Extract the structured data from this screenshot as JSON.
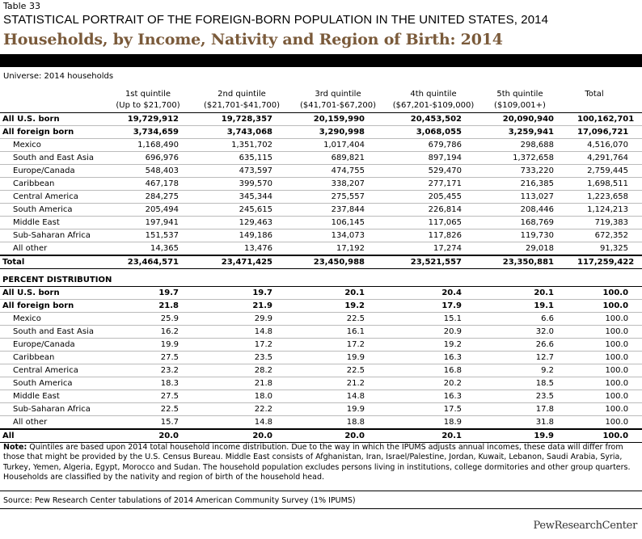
{
  "table_label": "Table 33",
  "super_title": "STATISTICAL PORTRAIT OF THE FOREIGN-BORN POPULATION IN THE UNITED STATES, 2014",
  "main_title": "Households, by Income, Nativity and Region of Birth: 2014",
  "universe": "Universe: 2014 households",
  "columns": [
    {
      "name": "1st quintile",
      "range": "(Up to $21,700)"
    },
    {
      "name": "2nd quintile",
      "range": "($21,701-$41,700)"
    },
    {
      "name": "3rd quintile",
      "range": "($41,701-$67,200)"
    },
    {
      "name": "4th quintile",
      "range": "($67,201-$109,000)"
    },
    {
      "name": "5th quintile",
      "range": "($109,001+)"
    },
    {
      "name": "",
      "range": "Total"
    }
  ],
  "counts": [
    {
      "label": "All U.S. born",
      "values": [
        "19,729,912",
        "19,728,357",
        "20,159,990",
        "20,453,502",
        "20,090,940",
        "100,162,701"
      ]
    },
    {
      "label": "All foreign born",
      "values": [
        "3,734,659",
        "3,743,068",
        "3,290,998",
        "3,068,055",
        "3,259,941",
        "17,096,721"
      ]
    },
    {
      "label": "Mexico",
      "values": [
        "1,168,490",
        "1,351,702",
        "1,017,404",
        "679,786",
        "298,688",
        "4,516,070"
      ]
    },
    {
      "label": "South and East Asia",
      "values": [
        "696,976",
        "635,115",
        "689,821",
        "897,194",
        "1,372,658",
        "4,291,764"
      ]
    },
    {
      "label": "Europe/Canada",
      "values": [
        "548,403",
        "473,597",
        "474,755",
        "529,470",
        "733,220",
        "2,759,445"
      ]
    },
    {
      "label": "Caribbean",
      "values": [
        "467,178",
        "399,570",
        "338,207",
        "277,171",
        "216,385",
        "1,698,511"
      ]
    },
    {
      "label": "Central America",
      "values": [
        "284,275",
        "345,344",
        "275,557",
        "205,455",
        "113,027",
        "1,223,658"
      ]
    },
    {
      "label": "South America",
      "values": [
        "205,494",
        "245,615",
        "237,844",
        "226,814",
        "208,446",
        "1,124,213"
      ]
    },
    {
      "label": "Middle East",
      "values": [
        "197,941",
        "129,463",
        "106,145",
        "117,065",
        "168,769",
        "719,383"
      ]
    },
    {
      "label": "Sub-Saharan Africa",
      "values": [
        "151,537",
        "149,186",
        "134,073",
        "117,826",
        "119,730",
        "672,352"
      ]
    },
    {
      "label": "All other",
      "values": [
        "14,365",
        "13,476",
        "17,192",
        "17,274",
        "29,018",
        "91,325"
      ]
    },
    {
      "label": "Total",
      "values": [
        "23,464,571",
        "23,471,425",
        "23,450,988",
        "23,521,557",
        "23,350,881",
        "117,259,422"
      ]
    }
  ],
  "pct_heading": "PERCENT DISTRIBUTION",
  "percents": [
    {
      "label": "All U.S. born",
      "values": [
        "19.7",
        "19.7",
        "20.1",
        "20.4",
        "20.1",
        "100.0"
      ]
    },
    {
      "label": "All foreign born",
      "values": [
        "21.8",
        "21.9",
        "19.2",
        "17.9",
        "19.1",
        "100.0"
      ]
    },
    {
      "label": "Mexico",
      "values": [
        "25.9",
        "29.9",
        "22.5",
        "15.1",
        "6.6",
        "100.0"
      ]
    },
    {
      "label": "South and East Asia",
      "values": [
        "16.2",
        "14.8",
        "16.1",
        "20.9",
        "32.0",
        "100.0"
      ]
    },
    {
      "label": "Europe/Canada",
      "values": [
        "19.9",
        "17.2",
        "17.2",
        "19.2",
        "26.6",
        "100.0"
      ]
    },
    {
      "label": "Caribbean",
      "values": [
        "27.5",
        "23.5",
        "19.9",
        "16.3",
        "12.7",
        "100.0"
      ]
    },
    {
      "label": "Central America",
      "values": [
        "23.2",
        "28.2",
        "22.5",
        "16.8",
        "9.2",
        "100.0"
      ]
    },
    {
      "label": "South America",
      "values": [
        "18.3",
        "21.8",
        "21.2",
        "20.2",
        "18.5",
        "100.0"
      ]
    },
    {
      "label": "Middle East",
      "values": [
        "27.5",
        "18.0",
        "14.8",
        "16.3",
        "23.5",
        "100.0"
      ]
    },
    {
      "label": "Sub-Saharan Africa",
      "values": [
        "22.5",
        "22.2",
        "19.9",
        "17.5",
        "17.8",
        "100.0"
      ]
    },
    {
      "label": "All other",
      "values": [
        "15.7",
        "14.8",
        "18.8",
        "18.9",
        "31.8",
        "100.0"
      ]
    },
    {
      "label": "All",
      "values": [
        "20.0",
        "20.0",
        "20.0",
        "20.1",
        "19.9",
        "100.0"
      ]
    }
  ],
  "note_label": "Note:",
  "note_text": " Quintiles are based upon 2014 total household income distribution. Due to the way in which the IPUMS adjusts annual incomes, these data will differ from those that might be provided by the U.S. Census Bureau. Middle East consists of Afghanistan, Iran, Israel/Palestine, Jordan, Kuwait, Lebanon, Saudi Arabia, Syria, Turkey, Yemen, Algeria, Egypt, Morocco and Sudan. The household population excludes persons living in institutions, college dormitories and other group quarters. Households are classified by the nativity and region of birth of the household head.",
  "source": "Source: Pew Research Center tabulations of 2014 American Community Survey (1% IPUMS)",
  "logo_text": "PewResearchCenter",
  "colors": {
    "title": "#7a5a3a",
    "bar": "#000000"
  }
}
